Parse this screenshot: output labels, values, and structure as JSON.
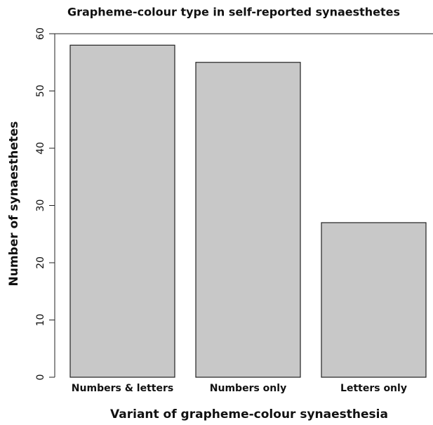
{
  "chart_data": {
    "type": "bar",
    "title": "Grapheme-colour type in self-reported synaesthetes",
    "x_label": "Variant of grapheme-colour synaesthesia",
    "y_label": "Number of synaesthetes",
    "categories": [
      "Numbers & letters",
      "Numbers only",
      "Letters only"
    ],
    "values": [
      58,
      55,
      27
    ],
    "color": "#c8c8c8",
    "ylim": [
      0,
      60
    ],
    "yticks": [
      0,
      10,
      20,
      30,
      40,
      50,
      60
    ]
  }
}
